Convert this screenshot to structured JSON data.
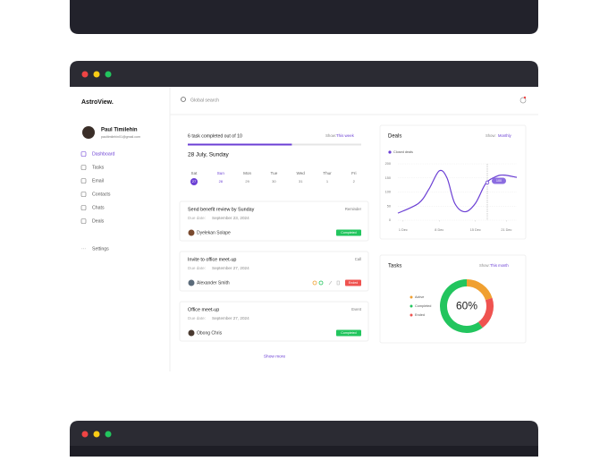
{
  "app": {
    "logo": "AstroView."
  },
  "profile": {
    "name": "Paul Timilehin",
    "email": "paultimilehin01@gmail.com"
  },
  "nav": [
    "Dashboard",
    "Tasks",
    "Email",
    "Contacts",
    "Chats",
    "Deals"
  ],
  "settings": "Settings",
  "search": {
    "placeholder": "Global search"
  },
  "progress": {
    "title": "6 task completed out of 10",
    "show_label": "Show:",
    "show_value": "This week",
    "completed": 6,
    "total": 10
  },
  "date": "28 July, Sunday",
  "calendar": {
    "days": [
      "Sat",
      "Sun",
      "Mon",
      "Tue",
      "Wed",
      "Thur",
      "Fri"
    ],
    "dates": [
      "27",
      "28",
      "29",
      "30",
      "31",
      "1",
      "2"
    ]
  },
  "tasks": [
    {
      "title": "Send benefit review by Sunday",
      "type": "Reminder",
      "due_label": "Due date:",
      "due": "September 23, 2024",
      "assignee": "Dyelekan Solape",
      "status": "Completed"
    },
    {
      "title": "Invite to office meet-up",
      "type": "Call",
      "due_label": "Due date:",
      "due": "September 27, 2024",
      "assignee": "Alexander Smith",
      "status": "Ended"
    },
    {
      "title": "Office meet-up",
      "type": "Event",
      "due_label": "Due date:",
      "due": "September 27, 2024",
      "assignee": "Obong Chris",
      "status": "Completed"
    }
  ],
  "show_more": "Show more",
  "deals": {
    "title": "Deals",
    "show_label": "Show:",
    "show_value": "Monthly",
    "chart": {
      "type": "line",
      "xlim": [
        0,
        23
      ],
      "ylim": [
        0,
        200
      ],
      "yticks": [
        0,
        50,
        100,
        150,
        200
      ],
      "xticks": [
        {
          "value": 1,
          "label": "1 Dec"
        },
        {
          "value": 8,
          "label": "8 Dec"
        },
        {
          "value": 15,
          "label": "15 Dec"
        },
        {
          "value": 21,
          "label": "21 Dec"
        }
      ],
      "grid": true,
      "tooltip": "100",
      "series": [
        {
          "name": "Closed deals",
          "color": "#6b3fd4",
          "x": [
            0,
            4,
            6,
            8,
            9.5,
            11,
            13,
            15,
            17,
            19,
            20.5,
            23
          ],
          "values": [
            25,
            60,
            110,
            175,
            150,
            60,
            30,
            60,
            130,
            155,
            160,
            152
          ]
        }
      ]
    }
  },
  "tasks_summary": {
    "title": "Tasks",
    "show_label": "Show:",
    "show_value": "This month",
    "chart": {
      "type": "donut",
      "center_label": "60%",
      "categories": [
        "Active",
        "Completed",
        "Ended"
      ],
      "values": [
        20,
        60,
        20
      ],
      "colors": [
        "#f0a030",
        "#22c55e",
        "#ef5350"
      ]
    }
  }
}
